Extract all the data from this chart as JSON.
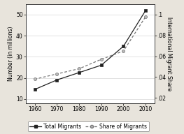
{
  "years": [
    1960,
    1970,
    1980,
    1990,
    2000,
    2010
  ],
  "total_migrants": [
    14.5,
    19.0,
    22.5,
    26.0,
    35.0,
    52.0
  ],
  "share_migrants": [
    0.038,
    0.043,
    0.048,
    0.057,
    0.065,
    0.098
  ],
  "left_ylim": [
    8,
    55
  ],
  "left_yticks": [
    10,
    20,
    30,
    40,
    50
  ],
  "right_ylim": [
    0.015,
    0.11
  ],
  "right_yticks": [
    0.02,
    0.04,
    0.06,
    0.08,
    0.1
  ],
  "right_yticklabels": [
    ".02",
    ".04",
    ".06",
    ".08",
    ".1"
  ],
  "xlim": [
    1956,
    2014
  ],
  "xticks": [
    1960,
    1970,
    1980,
    1990,
    2000,
    2010
  ],
  "ylabel_left": "Number (in millions)",
  "ylabel_right": "International Migrant Share",
  "line1_color": "#222222",
  "line2_color": "#777777",
  "bg_color": "#ffffff",
  "outer_bg": "#e8e4dc",
  "legend_label1": "Total Migrants",
  "legend_label2": "Share of Migrants",
  "axis_fontsize": 5.5,
  "tick_fontsize": 5.5
}
